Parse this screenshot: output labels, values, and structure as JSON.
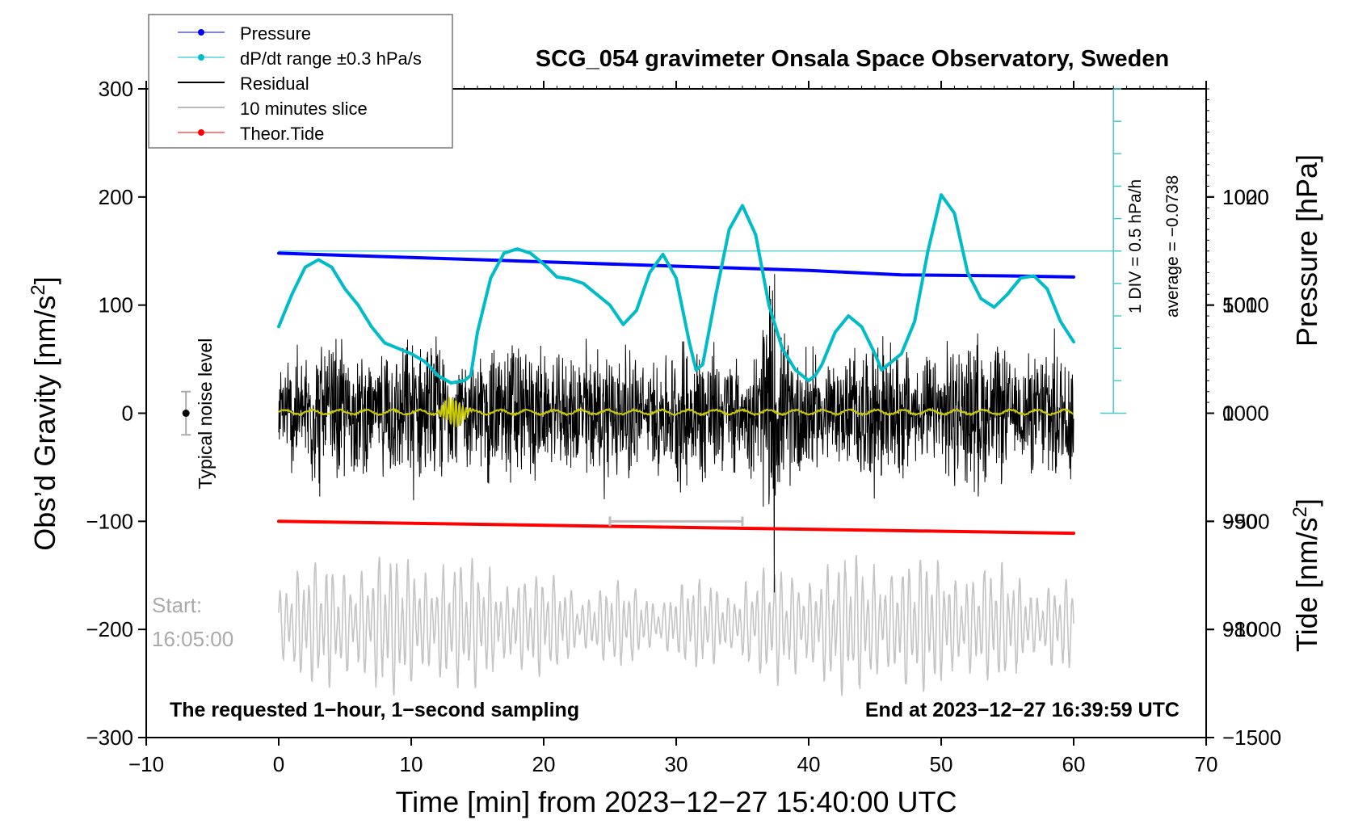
{
  "chart_data": {
    "type": "line",
    "title": "SCG_054 gravimeter Onsala Space Observatory, Sweden",
    "xlabel": "Time [min] from 2023−12−27 15:40:00 UTC",
    "ylabel_left": "Obs’d Gravity [nm/s²]",
    "ylabel_right_top": "Pressure [hPa]",
    "ylabel_right_bottom": "Tide [nm/s²]",
    "xlim": [
      -10,
      70
    ],
    "ylim": [
      -300,
      300
    ],
    "x_ticks": [
      "−10",
      "0",
      "10",
      "20",
      "30",
      "40",
      "50",
      "60",
      "70"
    ],
    "y_ticks": [
      "300",
      "200",
      "100",
      "0",
      "−100",
      "−200",
      "−300"
    ],
    "pressure_axis": {
      "range": [
        970,
        1030
      ],
      "ticks": [
        "1020",
        "1010",
        "1000",
        "990",
        "980"
      ]
    },
    "tide_axis": {
      "range": [
        -1500,
        1500
      ],
      "ticks": [
        "1000",
        "500",
        "0",
        "−500",
        "−1000",
        "−1500"
      ]
    },
    "legend": {
      "position": "top-left",
      "entries": [
        {
          "label": "Pressure",
          "color": "#0000ff",
          "marker": true
        },
        {
          "label": "dP/dt range ±0.3 hPa/s",
          "color": "#00bcc8",
          "marker": true
        },
        {
          "label": "Residual",
          "color": "#000000",
          "marker": false
        },
        {
          "label": "10 minutes slice",
          "color": "#bbbbbb",
          "marker": false
        },
        {
          "label": "Theor.Tide",
          "color": "#ff0000",
          "marker": true
        }
      ]
    },
    "annotations": {
      "noise_label": "Typical noise level",
      "start_label": "Start:",
      "start_time": "16:05:00",
      "bottom_left": "The requested 1−hour, 1−second sampling",
      "bottom_right": "End at 2023−12−27 16:39:59 UTC",
      "div_label": "1 DIV = 0.5 hPa/h",
      "average_label": "average = −0.0738"
    },
    "dpdt_scale": {
      "x": 63,
      "ylim": [
        0,
        300
      ],
      "divisions": 10,
      "reference_line_y": 150
    },
    "noise_bar": {
      "x": -7,
      "center": 0,
      "half_range": 20
    },
    "slice_bracket": {
      "x_start": 25,
      "x_end": 35,
      "y": -100
    },
    "series": [
      {
        "name": "Pressure",
        "color": "#0000ff",
        "axis": "pressure",
        "x": [
          0,
          10,
          20,
          30,
          40,
          47,
          55,
          60
        ],
        "y": [
          1014.8,
          1014.4,
          1014.0,
          1013.6,
          1013.2,
          1012.8,
          1012.7,
          1012.6
        ]
      },
      {
        "name": "dP/dt",
        "color": "#00bcc8",
        "axis": "left",
        "x": [
          0,
          1,
          2,
          3,
          4,
          5,
          6,
          7,
          8,
          9,
          10,
          11,
          11.5,
          12,
          13,
          14,
          14.5,
          15,
          16,
          17,
          18,
          19,
          20,
          21,
          22,
          23,
          24,
          25,
          26,
          27,
          28,
          29,
          30,
          31,
          31.5,
          32,
          33,
          34,
          35,
          36,
          37,
          38,
          39,
          40,
          40.5,
          41,
          42,
          43,
          44,
          45,
          45.5,
          46,
          47,
          48,
          49,
          50,
          51,
          52,
          53,
          54,
          55,
          56,
          57,
          58,
          59,
          60
        ],
        "y": [
          80,
          110,
          135,
          142,
          135,
          115,
          100,
          80,
          65,
          60,
          55,
          48,
          42,
          35,
          28,
          30,
          35,
          75,
          125,
          148,
          152,
          148,
          138,
          126,
          124,
          120,
          110,
          100,
          82,
          95,
          130,
          147,
          125,
          65,
          40,
          45,
          110,
          170,
          192,
          165,
          100,
          60,
          40,
          30,
          35,
          45,
          75,
          90,
          80,
          55,
          40,
          45,
          55,
          85,
          150,
          202,
          185,
          130,
          106,
          98,
          110,
          125,
          127,
          115,
          85,
          66
        ]
      },
      {
        "name": "Theor.Tide",
        "color": "#ff0000",
        "axis": "left",
        "x": [
          0,
          60
        ],
        "y": [
          -100,
          -111
        ]
      }
    ]
  }
}
